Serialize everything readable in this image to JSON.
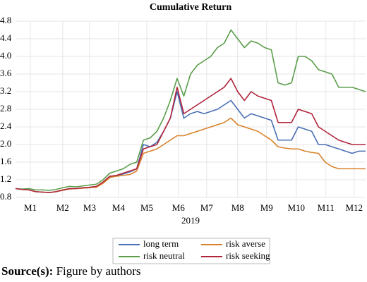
{
  "chart_data": {
    "type": "line",
    "title": "Cumulative Return",
    "xlabel": "2019",
    "x": [
      0,
      1,
      2,
      3,
      4,
      5,
      6,
      7,
      8,
      9,
      10,
      11,
      12,
      13,
      14,
      15,
      16,
      17,
      18,
      19,
      20,
      21,
      22,
      23,
      24,
      25,
      26,
      27,
      28,
      29,
      30,
      31,
      32,
      33,
      34,
      35,
      36,
      37,
      38,
      39,
      40,
      41,
      42,
      43,
      44,
      45,
      46,
      47,
      48,
      49,
      50,
      51,
      52
    ],
    "xlim": [
      0,
      52
    ],
    "xticks": [
      {
        "value": 2.2,
        "label": "M1"
      },
      {
        "value": 7,
        "label": "M2"
      },
      {
        "value": 11,
        "label": "M3"
      },
      {
        "value": 15.3,
        "label": "M4"
      },
      {
        "value": 19.5,
        "label": "M5"
      },
      {
        "value": 24.2,
        "label": "M6"
      },
      {
        "value": 28.4,
        "label": "M7"
      },
      {
        "value": 33,
        "label": "M8"
      },
      {
        "value": 37.3,
        "label": "M9"
      },
      {
        "value": 41.7,
        "label": "M10"
      },
      {
        "value": 46.1,
        "label": "M11"
      },
      {
        "value": 50.3,
        "label": "M12"
      }
    ],
    "ylim": [
      0.8,
      4.8
    ],
    "yticks": [
      0.8,
      1.2,
      1.6,
      {
        "value": 2,
        "label": "2.0"
      },
      2.4,
      2.8,
      3.2,
      3.6,
      {
        "value": 4,
        "label": "4.0"
      },
      4.4,
      4.8
    ],
    "grid": true,
    "series": [
      {
        "name": "long term",
        "color": "#4a6fb5",
        "values": [
          1.0,
          0.98,
          0.97,
          0.93,
          0.92,
          0.91,
          0.93,
          0.96,
          0.99,
          1.0,
          1.01,
          1.02,
          1.04,
          1.14,
          1.27,
          1.3,
          1.33,
          1.38,
          1.45,
          2.0,
          1.95,
          2.05,
          2.3,
          2.6,
          3.2,
          2.6,
          2.7,
          2.75,
          2.7,
          2.75,
          2.8,
          2.9,
          3.0,
          2.8,
          2.6,
          2.7,
          2.65,
          2.6,
          2.55,
          2.1,
          2.1,
          2.1,
          2.4,
          2.35,
          2.3,
          2.0,
          2.0,
          1.95,
          1.9,
          1.85,
          1.8,
          1.85,
          1.85
        ]
      },
      {
        "name": "risk averse",
        "color": "#d9822b",
        "values": [
          1.0,
          0.98,
          0.97,
          0.93,
          0.92,
          0.91,
          0.93,
          0.96,
          0.99,
          1.0,
          1.01,
          1.02,
          1.03,
          1.12,
          1.25,
          1.28,
          1.3,
          1.32,
          1.4,
          1.8,
          1.85,
          1.9,
          2.0,
          2.1,
          2.2,
          2.2,
          2.25,
          2.3,
          2.35,
          2.4,
          2.45,
          2.5,
          2.6,
          2.45,
          2.4,
          2.35,
          2.3,
          2.2,
          2.1,
          1.95,
          1.92,
          1.9,
          1.9,
          1.85,
          1.82,
          1.8,
          1.6,
          1.5,
          1.45,
          1.45,
          1.45,
          1.45,
          1.45
        ]
      },
      {
        "name": "risk neutral",
        "color": "#5a9e4b",
        "values": [
          1.0,
          0.99,
          1.0,
          0.97,
          0.97,
          0.96,
          0.98,
          1.02,
          1.05,
          1.04,
          1.06,
          1.08,
          1.1,
          1.2,
          1.35,
          1.4,
          1.45,
          1.55,
          1.6,
          2.1,
          2.15,
          2.3,
          2.6,
          3.0,
          3.5,
          3.1,
          3.6,
          3.8,
          3.9,
          4.0,
          4.2,
          4.3,
          4.6,
          4.4,
          4.2,
          4.35,
          4.3,
          4.2,
          4.15,
          3.4,
          3.35,
          3.4,
          4.0,
          4.0,
          3.9,
          3.7,
          3.65,
          3.6,
          3.3,
          3.3,
          3.3,
          3.25,
          3.2
        ]
      },
      {
        "name": "risk seeking",
        "color": "#b0243a",
        "values": [
          1.0,
          0.98,
          0.97,
          0.93,
          0.92,
          0.91,
          0.93,
          0.97,
          1.0,
          1.0,
          1.02,
          1.03,
          1.05,
          1.15,
          1.28,
          1.3,
          1.35,
          1.4,
          1.45,
          1.9,
          1.95,
          2.0,
          2.3,
          2.6,
          3.3,
          2.7,
          2.8,
          2.9,
          3.0,
          3.1,
          3.2,
          3.3,
          3.5,
          3.2,
          3.0,
          3.2,
          3.1,
          3.05,
          3.0,
          2.5,
          2.5,
          2.5,
          2.8,
          2.75,
          2.7,
          2.4,
          2.3,
          2.2,
          2.1,
          2.05,
          2.0,
          2.0,
          2.0
        ]
      }
    ]
  },
  "source_label": "Source(s):",
  "source_text": "Figure by authors"
}
